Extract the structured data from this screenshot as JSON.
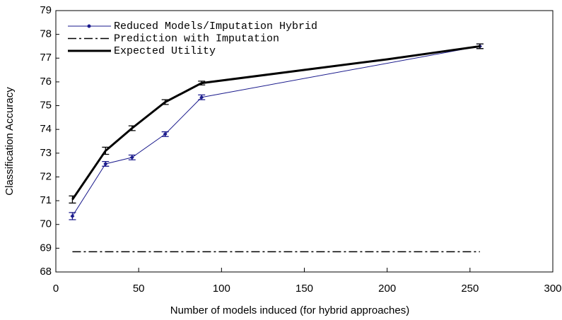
{
  "chart_data": {
    "type": "line",
    "xlabel": "Number of models induced (for hybrid approaches)",
    "ylabel": "Classification Accuracy",
    "xlim": [
      0,
      300
    ],
    "xticks": [
      0,
      50,
      100,
      150,
      200,
      250,
      300
    ],
    "ylim": [
      68,
      79
    ],
    "yticks": [
      68,
      69,
      70,
      71,
      72,
      73,
      74,
      75,
      76,
      77,
      78,
      79
    ],
    "legend": "upper left",
    "series": [
      {
        "name": "Reduced Models/Imputation Hybrid",
        "color": "#1a1a8c",
        "style": "solid",
        "marker": "diamond",
        "x": [
          10,
          30,
          46,
          66,
          88,
          256
        ],
        "values": [
          70.35,
          72.55,
          72.82,
          73.8,
          75.35,
          77.5
        ],
        "errors": [
          0.15,
          0.1,
          0.1,
          0.1,
          0.1,
          0.1
        ]
      },
      {
        "name": "Prediction with Imputation",
        "color": "#000000",
        "style": "dashdot",
        "x": [
          10,
          256
        ],
        "values": [
          68.85,
          68.85
        ]
      },
      {
        "name": "Expected Utility",
        "color": "#000000",
        "style": "thick",
        "x": [
          10,
          30,
          46,
          66,
          88,
          200,
          256
        ],
        "values": [
          71.05,
          73.1,
          74.05,
          75.15,
          75.95,
          76.95,
          77.5
        ],
        "errors": [
          0.15,
          0.15,
          0.1,
          0.1,
          0.08,
          null,
          0.1
        ]
      }
    ]
  }
}
